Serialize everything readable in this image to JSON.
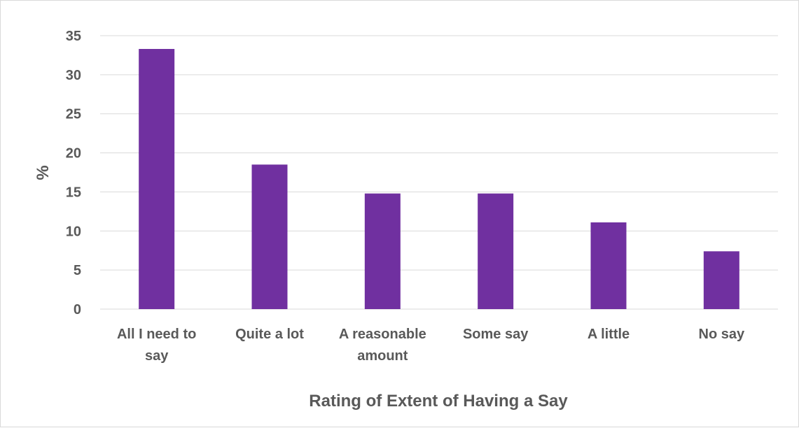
{
  "chart_data": {
    "type": "bar",
    "title": "",
    "xlabel": "Rating of Extent of Having a Say",
    "ylabel": "%",
    "categories": [
      [
        "All I need to",
        "say"
      ],
      [
        "Quite a lot"
      ],
      [
        "A reasonable",
        "amount"
      ],
      [
        "Some say"
      ],
      [
        "A little"
      ],
      [
        "No say"
      ]
    ],
    "values": [
      33.3,
      18.5,
      14.8,
      14.8,
      11.1,
      7.4
    ],
    "ylim": [
      0,
      35
    ],
    "yticks": [
      0,
      5,
      10,
      15,
      20,
      25,
      30,
      35
    ],
    "grid": true,
    "legend": "none",
    "bar_color": "#7030a0",
    "grid_color": "#d9d9d9",
    "text_color": "#595959"
  }
}
